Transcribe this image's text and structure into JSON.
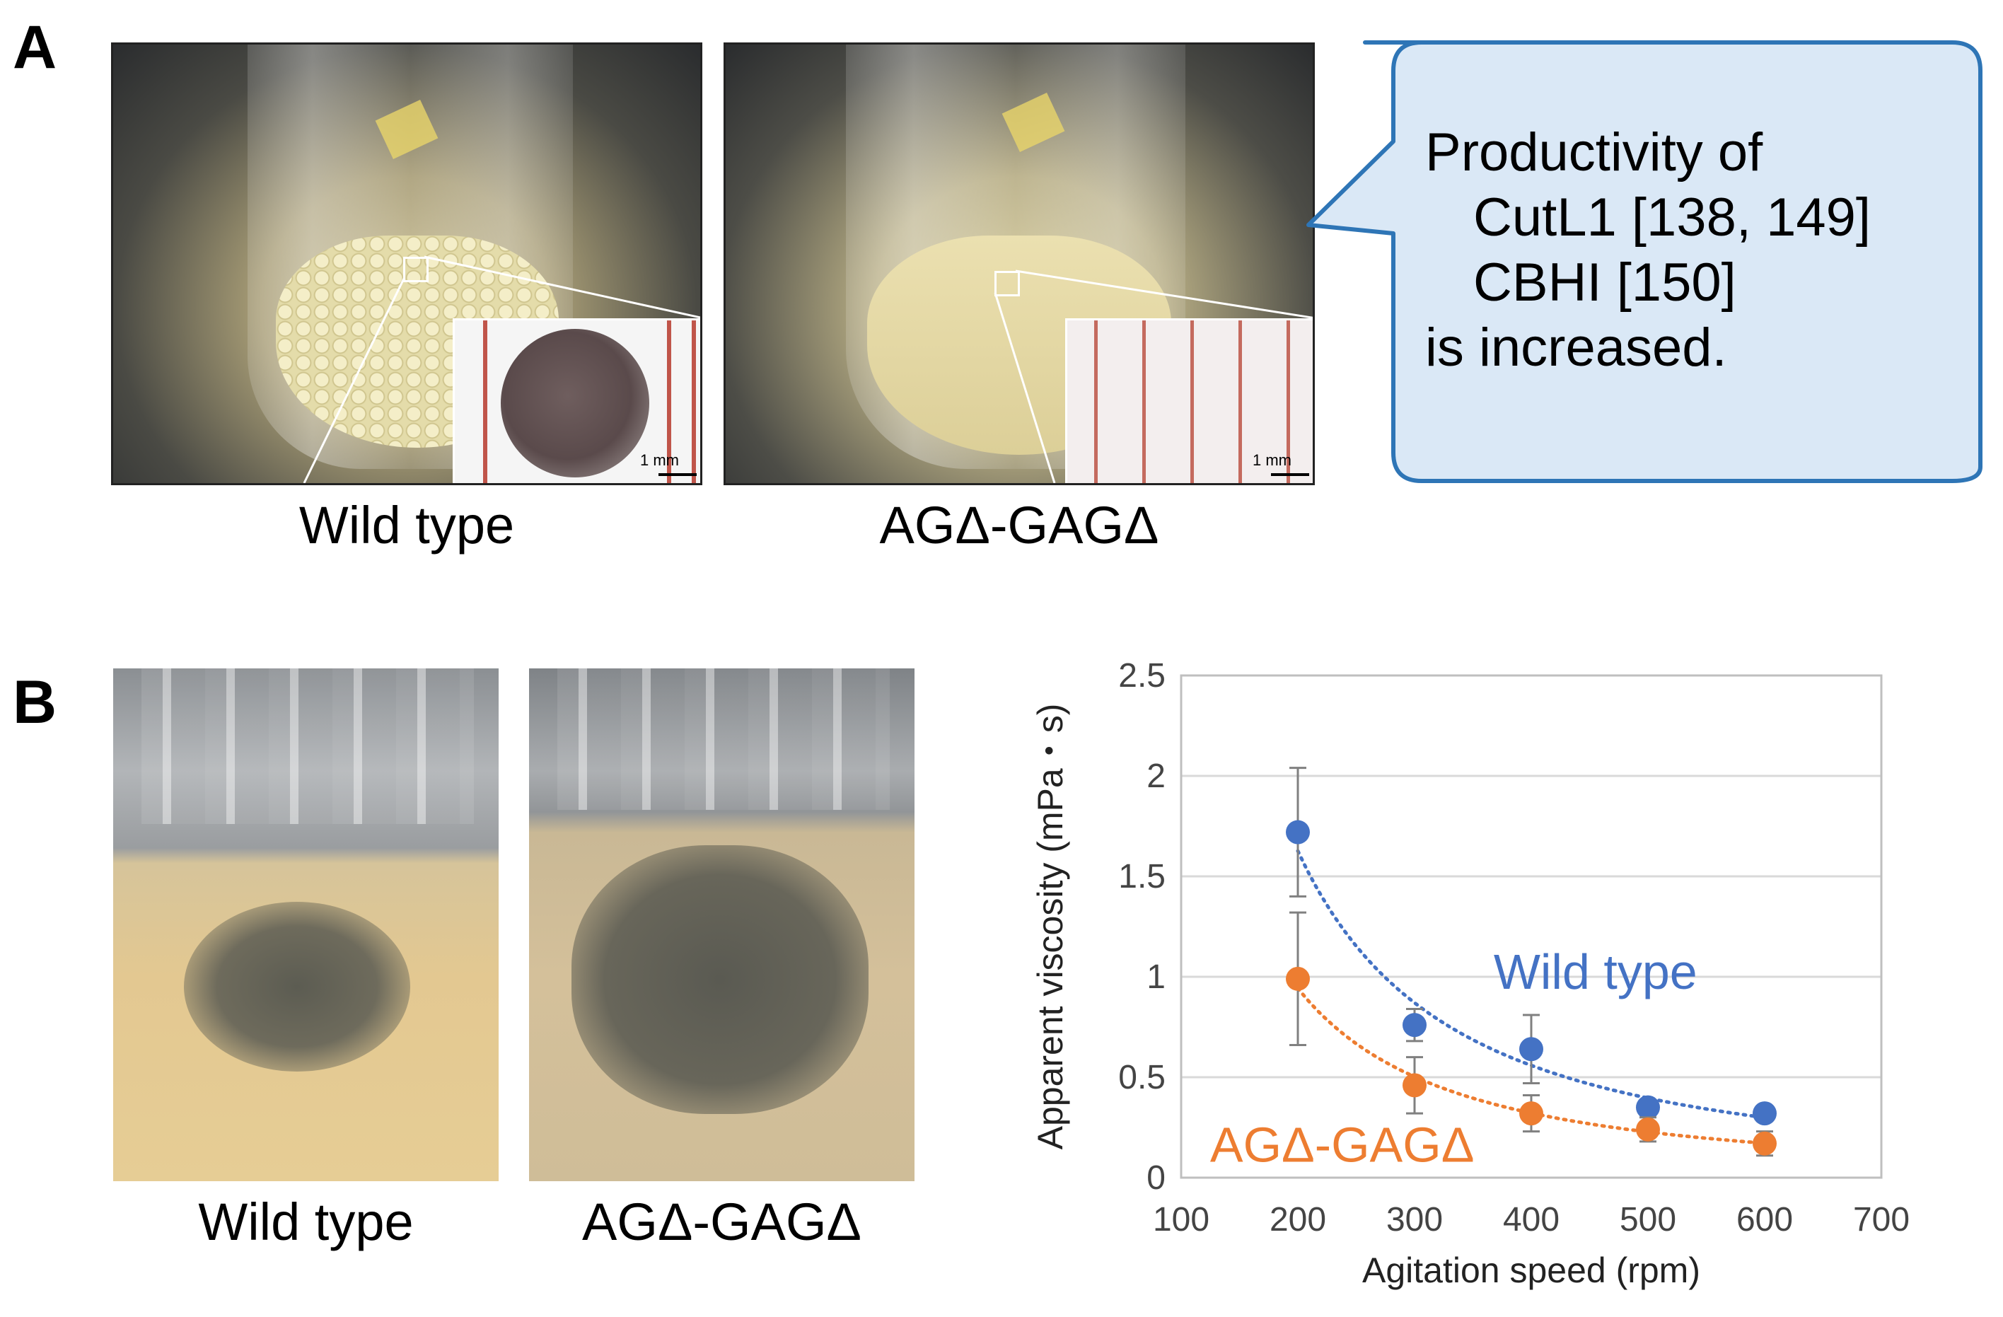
{
  "panelA": {
    "letter": "A",
    "wild_caption": "Wild type",
    "mutant_caption": "AGΔ-GAGΔ",
    "scale_bar_label": "1 mm",
    "bubble": {
      "line1": "Productivity of",
      "line2": "CutL1 [138, 149]",
      "line3": "CBHI [150]",
      "line4": "is increased."
    }
  },
  "panelB": {
    "letter": "B",
    "wild_caption": "Wild type",
    "mutant_caption": "AGΔ-GAGΔ"
  },
  "colors": {
    "wild": "#4472C4",
    "mutant": "#ED7D31",
    "bubble_fill": "#DAE8F6",
    "bubble_border": "#2E75B6"
  },
  "chart_data": {
    "type": "scatter",
    "xlabel": "Agitation speed (rpm)",
    "ylabel": "Apparent viscosity (mPa・s)",
    "xlim": [
      100,
      700
    ],
    "ylim": [
      0,
      2.5
    ],
    "xticks": [
      "100",
      "200",
      "300",
      "400",
      "500",
      "600",
      "700"
    ],
    "yticks": [
      "0",
      "0.5",
      "1",
      "1.5",
      "2",
      "2.5"
    ],
    "grid": "horizontal",
    "series": [
      {
        "name": "Wild type",
        "color": "#4472C4",
        "x": [
          200,
          300,
          400,
          500,
          600
        ],
        "y": [
          1.72,
          0.76,
          0.64,
          0.35,
          0.32
        ],
        "err": [
          0.32,
          0.08,
          0.17,
          0.02,
          0.02
        ]
      },
      {
        "name": "AGΔ-GAGΔ",
        "color": "#ED7D31",
        "x": [
          200,
          300,
          400,
          500,
          600
        ],
        "y": [
          0.99,
          0.46,
          0.32,
          0.24,
          0.17
        ],
        "err": [
          0.33,
          0.14,
          0.09,
          0.06,
          0.06
        ]
      }
    ]
  }
}
